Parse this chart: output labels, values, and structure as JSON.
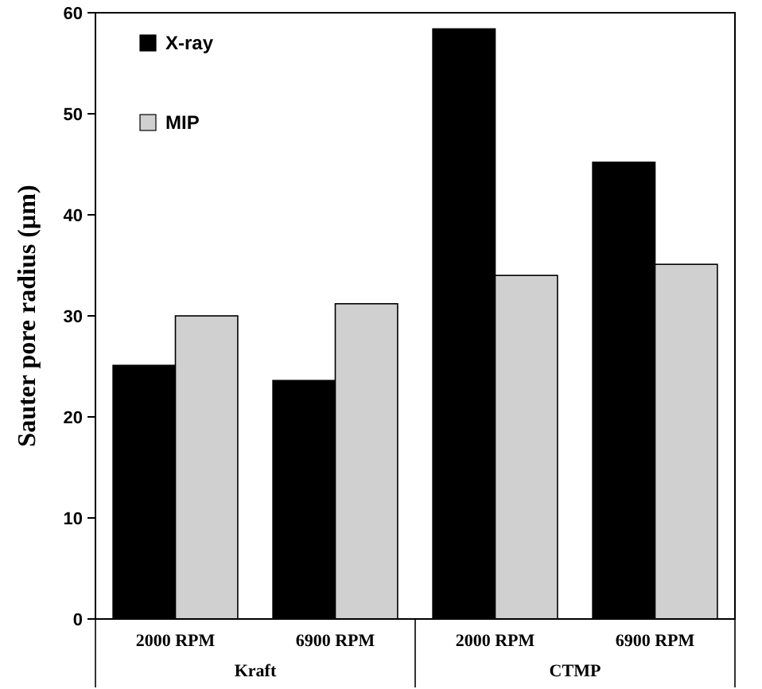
{
  "chart_data": {
    "type": "bar",
    "ylabel": "Sauter pore radius (µm)",
    "categories": [
      "2000 RPM",
      "6900 RPM",
      "2000 RPM",
      "6900 RPM"
    ],
    "annotations": [
      "Kraft",
      "CTMP"
    ],
    "series": [
      {
        "name": "X-ray",
        "color": "#000000",
        "values": [
          25.1,
          23.6,
          58.4,
          45.2
        ]
      },
      {
        "name": "MIP",
        "color": "#d0d0d0",
        "values": [
          30,
          31.2,
          34,
          35.1
        ]
      }
    ],
    "ylim": [
      0,
      60
    ],
    "yticks": [
      0,
      10,
      20,
      30,
      40,
      50,
      60
    ],
    "grid": false,
    "legend": "top left"
  }
}
